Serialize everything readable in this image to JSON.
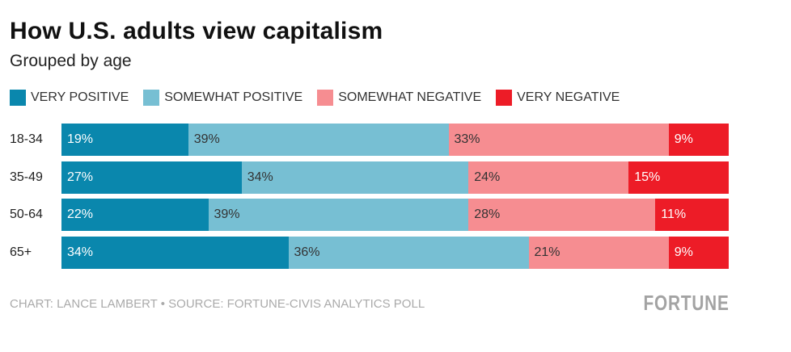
{
  "chart_data": {
    "type": "bar",
    "stacked": true,
    "orientation": "horizontal",
    "title": "How U.S. adults view capitalism",
    "subtitle": "Grouped by age",
    "categories": [
      "18-34",
      "35-49",
      "50-64",
      "65+"
    ],
    "series": [
      {
        "name": "VERY POSITIVE",
        "color": "#0a87ad",
        "text_color": "#ffffff",
        "values": [
          19,
          27,
          22,
          34
        ]
      },
      {
        "name": "SOMEWHAT POSITIVE",
        "color": "#77bfd3",
        "text_color": "#333333",
        "values": [
          39,
          34,
          39,
          36
        ]
      },
      {
        "name": "SOMEWHAT NEGATIVE",
        "color": "#f68d91",
        "text_color": "#333333",
        "values": [
          33,
          24,
          28,
          21
        ]
      },
      {
        "name": "VERY NEGATIVE",
        "color": "#ed1c27",
        "text_color": "#ffffff",
        "values": [
          9,
          15,
          11,
          9
        ]
      }
    ],
    "value_suffix": "%",
    "legend_position": "top-left",
    "xlim": [
      0,
      100
    ]
  },
  "footer": {
    "credit": "CHART: LANCE LAMBERT • SOURCE: FORTUNE-CIVIS ANALYTICS POLL",
    "logo": "FORTUNE"
  }
}
